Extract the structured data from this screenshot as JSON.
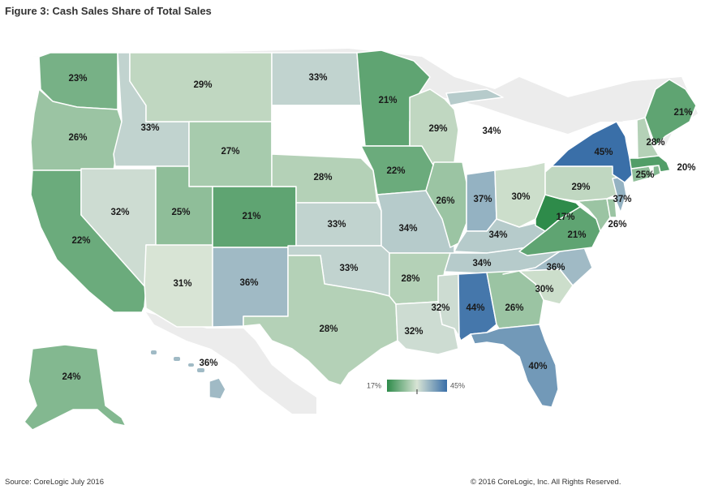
{
  "title": "Figure 3: Cash Sales Share of Total Sales",
  "source": "Source: CoreLogic July 2016",
  "copyright": "© 2016 CoreLogic, Inc. All Rights Reserved.",
  "colors": {
    "low": "#2e8b4a",
    "mid": "#d8e4d5",
    "high": "#3a6fa8",
    "none": "#ffffff",
    "land": "#d9d9d9"
  },
  "legend": {
    "min_label": "17%",
    "max_label": "45%"
  },
  "chart_data": {
    "type": "choropleth",
    "scale": {
      "min": 17,
      "max": 45,
      "unit": "%"
    },
    "states": [
      {
        "id": "WA",
        "label": "23%",
        "value": 23
      },
      {
        "id": "OR",
        "label": "26%",
        "value": 26
      },
      {
        "id": "CA",
        "label": "22%",
        "value": 22
      },
      {
        "id": "ID",
        "label": "33%",
        "value": 33
      },
      {
        "id": "NV",
        "label": "32%",
        "value": 32
      },
      {
        "id": "MT",
        "label": "29%",
        "value": 29
      },
      {
        "id": "WY",
        "label": "27%",
        "value": 27
      },
      {
        "id": "UT",
        "label": "25%",
        "value": 25
      },
      {
        "id": "AZ",
        "label": "31%",
        "value": 31
      },
      {
        "id": "CO",
        "label": "21%",
        "value": 21
      },
      {
        "id": "NM",
        "label": "36%",
        "value": 36
      },
      {
        "id": "ND",
        "label": "33%",
        "value": 33
      },
      {
        "id": "SD",
        "label": "",
        "value": null
      },
      {
        "id": "NE",
        "label": "28%",
        "value": 28
      },
      {
        "id": "KS",
        "label": "33%",
        "value": 33
      },
      {
        "id": "OK",
        "label": "33%",
        "value": 33
      },
      {
        "id": "TX",
        "label": "28%",
        "value": 28
      },
      {
        "id": "MN",
        "label": "21%",
        "value": 21
      },
      {
        "id": "IA",
        "label": "22%",
        "value": 22
      },
      {
        "id": "MO",
        "label": "34%",
        "value": 34
      },
      {
        "id": "AR",
        "label": "28%",
        "value": 28
      },
      {
        "id": "LA",
        "label": "32%",
        "value": 32
      },
      {
        "id": "WI",
        "label": "29%",
        "value": 29
      },
      {
        "id": "IL",
        "label": "26%",
        "value": 26
      },
      {
        "id": "MI",
        "label": "34%",
        "value": 34
      },
      {
        "id": "IN",
        "label": "37%",
        "value": 37
      },
      {
        "id": "OH",
        "label": "30%",
        "value": 30
      },
      {
        "id": "KY",
        "label": "34%",
        "value": 34
      },
      {
        "id": "TN",
        "label": "34%",
        "value": 34
      },
      {
        "id": "MS",
        "label": "32%",
        "value": 32
      },
      {
        "id": "AL",
        "label": "44%",
        "value": 44
      },
      {
        "id": "GA",
        "label": "26%",
        "value": 26
      },
      {
        "id": "FL",
        "label": "40%",
        "value": 40
      },
      {
        "id": "SC",
        "label": "30%",
        "value": 30
      },
      {
        "id": "NC",
        "label": "36%",
        "value": 36
      },
      {
        "id": "VA",
        "label": "21%",
        "value": 21
      },
      {
        "id": "WV",
        "label": "17%",
        "value": 17
      },
      {
        "id": "MD",
        "label": "26%",
        "value": 26
      },
      {
        "id": "DE",
        "label": "",
        "value": 26
      },
      {
        "id": "PA",
        "label": "29%",
        "value": 29
      },
      {
        "id": "NJ",
        "label": "37%",
        "value": 37
      },
      {
        "id": "NY",
        "label": "45%",
        "value": 45
      },
      {
        "id": "CT",
        "label": "25%",
        "value": 25
      },
      {
        "id": "RI",
        "label": "",
        "value": 24
      },
      {
        "id": "MA",
        "label": "20%",
        "value": 20
      },
      {
        "id": "VT",
        "label": "",
        "value": null
      },
      {
        "id": "NH",
        "label": "28%",
        "value": 28
      },
      {
        "id": "ME",
        "label": "21%",
        "value": 21
      },
      {
        "id": "AK",
        "label": "24%",
        "value": 24
      },
      {
        "id": "HI",
        "label": "36%",
        "value": 36
      }
    ]
  }
}
